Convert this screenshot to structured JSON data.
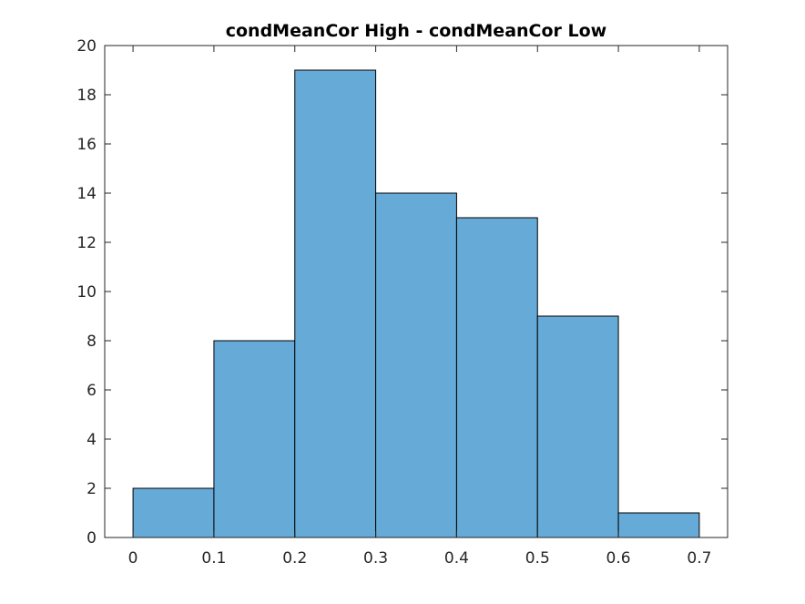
{
  "chart_data": {
    "type": "bar",
    "title": "condMeanCor High - condMeanCor Low",
    "xlabel": "",
    "ylabel": "",
    "bin_edges": [
      0,
      0.1,
      0.2,
      0.3,
      0.4,
      0.5,
      0.6,
      0.7
    ],
    "values": [
      2,
      8,
      19,
      14,
      13,
      9,
      1
    ],
    "xlim": [
      -0.035,
      0.735
    ],
    "ylim": [
      0,
      20
    ],
    "x_ticks": [
      "0",
      "0.1",
      "0.2",
      "0.3",
      "0.4",
      "0.5",
      "0.6",
      "0.7"
    ],
    "y_ticks": [
      "0",
      "2",
      "4",
      "6",
      "8",
      "10",
      "12",
      "14",
      "16",
      "18",
      "20"
    ],
    "bar_color": "#66aad7",
    "edge_color": "#000000",
    "grid": false,
    "legend": "none"
  }
}
